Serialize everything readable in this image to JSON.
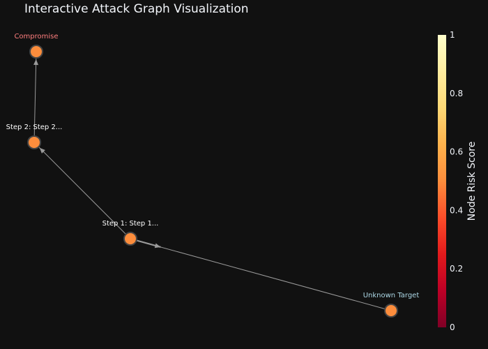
{
  "title": "Interactive Attack Graph Visualization",
  "colors": {
    "background": "#111111",
    "node_fill": "#fd8d3c",
    "node_stroke": "#444444",
    "edge": "#9a9a9a",
    "label_start": "#ffffff",
    "label_compromise": "#ff7f7f",
    "label_target": "#add8e6"
  },
  "nodes": [
    {
      "id": "compromise",
      "label": "Compromise",
      "label_color": "#ff7f7f"
    },
    {
      "id": "step2",
      "label": "Step 2: Step 2...",
      "label_color": "#ffffff"
    },
    {
      "id": "step1",
      "label": "Step 1: Step 1...",
      "label_color": "#ffffff"
    },
    {
      "id": "target",
      "label": "Unknown Target",
      "label_color": "#add8e6"
    }
  ],
  "edges": [
    {
      "from": "step1",
      "to": "step2"
    },
    {
      "from": "step2",
      "to": "compromise"
    },
    {
      "from": "step1",
      "to": "target"
    }
  ],
  "colorbar": {
    "title": "Node Risk Score",
    "ticks": [
      "0",
      "0.2",
      "0.4",
      "0.6",
      "0.8",
      "1"
    ],
    "colorscale": [
      "#800026",
      "#bd0026",
      "#e31a1c",
      "#fc4e2a",
      "#fd8d3c",
      "#feb24c",
      "#fed976",
      "#ffeda0",
      "#ffffcc"
    ]
  }
}
